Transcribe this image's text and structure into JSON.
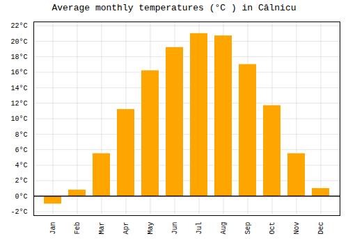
{
  "chart_data": {
    "type": "bar",
    "title": "Average monthly temperatures (°C ) in Câlnicu",
    "categories": [
      "Jan",
      "Feb",
      "Mar",
      "Apr",
      "May",
      "Jun",
      "Jul",
      "Aug",
      "Sep",
      "Oct",
      "Nov",
      "Dec"
    ],
    "values": [
      -1.0,
      0.8,
      5.5,
      11.2,
      16.2,
      19.2,
      21.0,
      20.7,
      17.0,
      11.7,
      5.5,
      1.0
    ],
    "color": "#FFA500",
    "ylim": [
      -2.5,
      22.5
    ],
    "yticks": [
      {
        "value": -2,
        "label": "-2°C"
      },
      {
        "value": 0,
        "label": "0°C"
      },
      {
        "value": 2,
        "label": "2°C"
      },
      {
        "value": 4,
        "label": "4°C"
      },
      {
        "value": 6,
        "label": "6°C"
      },
      {
        "value": 8,
        "label": "8°C"
      },
      {
        "value": 10,
        "label": "10°C"
      },
      {
        "value": 12,
        "label": "12°C"
      },
      {
        "value": 14,
        "label": "14°C"
      },
      {
        "value": 16,
        "label": "16°C"
      },
      {
        "value": 18,
        "label": "18°C"
      },
      {
        "value": 20,
        "label": "20°C"
      },
      {
        "value": 22,
        "label": "22°C"
      }
    ],
    "grid": true
  }
}
